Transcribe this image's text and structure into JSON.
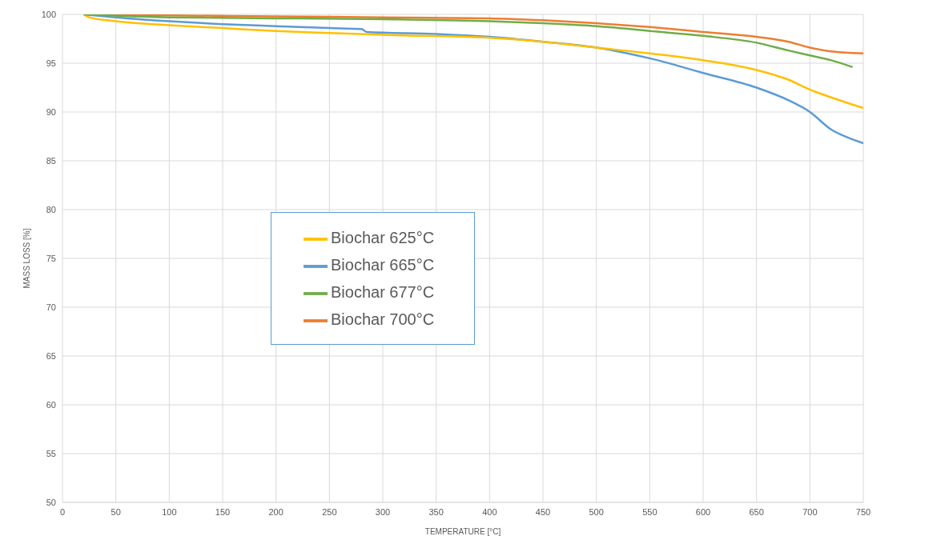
{
  "chart_data": {
    "type": "line",
    "xlabel": "TEMPERATURE [°C]",
    "ylabel": "MASS LOSS [%]",
    "xlim": [
      0,
      750
    ],
    "xticks": [
      0,
      50,
      100,
      150,
      200,
      250,
      300,
      350,
      400,
      450,
      500,
      550,
      600,
      650,
      700,
      750
    ],
    "ylim": [
      50,
      100
    ],
    "yticks": [
      50,
      55,
      60,
      65,
      70,
      75,
      80,
      85,
      90,
      95,
      100
    ],
    "grid": true,
    "legend": "center",
    "marker": "none",
    "line_style": "solid",
    "series": [
      {
        "name": "Biochar 665°C",
        "color": "#5b9bd5",
        "x": [
          20,
          50,
          100,
          150,
          200,
          250,
          280,
          285,
          350,
          400,
          450,
          500,
          550,
          600,
          650,
          680,
          700,
          720,
          735,
          750
        ],
        "values": [
          100,
          99.7,
          99.3,
          99.0,
          98.8,
          98.6,
          98.5,
          98.2,
          98.0,
          97.7,
          97.2,
          96.6,
          95.5,
          94.0,
          92.5,
          91.2,
          90.0,
          88.2,
          87.4,
          86.8
        ]
      },
      {
        "name": "Biochar 700°C",
        "color": "#ed7d31",
        "x": [
          20,
          100,
          200,
          300,
          400,
          450,
          500,
          550,
          600,
          650,
          680,
          700,
          720,
          750
        ],
        "values": [
          100,
          99.9,
          99.8,
          99.7,
          99.6,
          99.4,
          99.1,
          98.7,
          98.2,
          97.7,
          97.2,
          96.6,
          96.2,
          96.0
        ]
      },
      {
        "name": "Biochar 625°C",
        "color": "#ffc000",
        "x": [
          20,
          25,
          50,
          100,
          150,
          200,
          250,
          300,
          400,
          450,
          500,
          550,
          600,
          650,
          680,
          700,
          720,
          750
        ],
        "values": [
          100,
          99.7,
          99.3,
          98.9,
          98.6,
          98.3,
          98.1,
          97.9,
          97.6,
          97.2,
          96.6,
          96.0,
          95.3,
          94.3,
          93.3,
          92.3,
          91.5,
          90.4
        ]
      },
      {
        "name": "Biochar 677°C",
        "color": "#70ad47",
        "x": [
          20,
          100,
          200,
          300,
          400,
          450,
          500,
          550,
          600,
          650,
          680,
          700,
          720,
          740
        ],
        "values": [
          100,
          99.7,
          99.6,
          99.5,
          99.3,
          99.1,
          98.8,
          98.3,
          97.8,
          97.1,
          96.3,
          95.8,
          95.3,
          94.6
        ]
      }
    ]
  }
}
